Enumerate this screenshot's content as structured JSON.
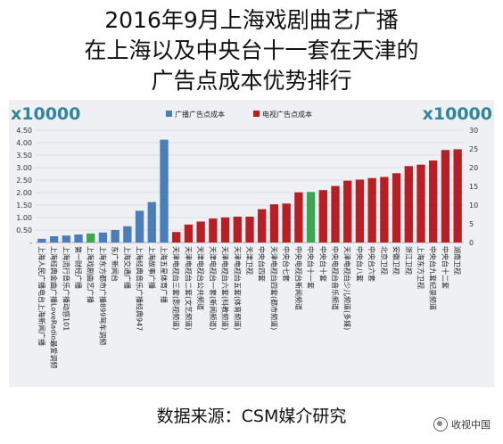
{
  "titles": {
    "line1": "2016年9月上海戏剧曲艺广播",
    "line2": "在上海以及中央台十一套在天津的",
    "line3": "广告点成本优势排行"
  },
  "footer": "数据来源：CSM媒介研究",
  "watermark": "收视中国",
  "colors": {
    "radio": "#4a7ebb",
    "tv": "#b81f25",
    "highlight": "#3aa652",
    "multiplier": "#31859b"
  },
  "chart_data": {
    "type": "bar",
    "left_multiplier": "x10000",
    "right_multiplier": "x10000",
    "legend": [
      {
        "name": "广播广告点成本",
        "color": "#4a7ebb"
      },
      {
        "name": "电视广告点成本",
        "color": "#b81f25"
      }
    ],
    "left_axis": {
      "min": 0,
      "max": 4.5,
      "ticks": [
        "-",
        "0.50",
        "1.00",
        "1.50",
        "2.00",
        "2.50",
        "3.00",
        "3.50",
        "4.00",
        "4.50"
      ]
    },
    "right_axis": {
      "min": 0,
      "max": 30,
      "ticks": [
        "0",
        "5",
        "10",
        "15",
        "20",
        "25",
        "30"
      ]
    },
    "grid": true,
    "radio_series": {
      "categories": [
        "上海人民广播电台上海新闻广播",
        "上海经典金曲广播LoveRadio最爱调频",
        "上海流行音乐广播动感101",
        "第一财经广播",
        "上海戏剧曲艺广播",
        "上海东方都市广播899驾车调频",
        "东广新闻台",
        "上海交通广播",
        "上海经典音乐广播经典947",
        "上海故事广播",
        "上海五星体育广播"
      ],
      "values": [
        0.15,
        0.25,
        0.28,
        0.32,
        0.36,
        0.4,
        0.5,
        0.65,
        1.27,
        1.62,
        4.12
      ],
      "highlight_index": 4
    },
    "tv_series": {
      "categories": [
        "天津电视台三套(影视频道)",
        "天津电视台二套(文艺频道)",
        "天津电视台公共频道",
        "天津电视台一套(新闻频道)",
        "天津电视台六套(科教频道)",
        "天津电视台五套(体育频道)",
        "天津卫视",
        "中央台四套",
        "天津电视台四套(都市频道)",
        "中央台七套",
        "中央电视台新闻频道",
        "中央台十一套",
        "中央台十套",
        "中央电视台音乐频道",
        "天津电视台少儿频道(多媒)",
        "中央台八套",
        "中央台六套",
        "北京卫视",
        "安徽卫视",
        "浙江卫视",
        "上海东方卫视",
        "中央台九套纪录频道",
        "中央台十二套",
        "湖南卫视"
      ],
      "values": [
        2.8,
        4.8,
        5.6,
        6.4,
        6.7,
        6.9,
        6.9,
        8.9,
        10.2,
        10.4,
        13.4,
        13.5,
        14.0,
        15.1,
        16.5,
        16.8,
        17.2,
        17.5,
        18.5,
        20.4,
        20.8,
        21.9,
        24.7,
        24.9
      ],
      "highlight_index": 11
    }
  }
}
